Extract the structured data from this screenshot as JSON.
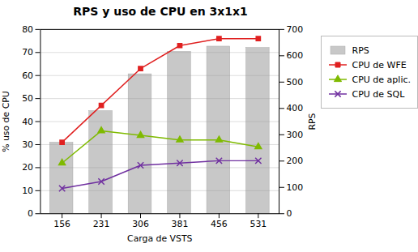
{
  "chart_data": {
    "type": "combo",
    "title": "RPS y uso de CPU en 3x1x1",
    "xlabel": "Carga de VSTS",
    "ylabel": "% uso de CPU",
    "y2label": "RPS",
    "categories": [
      156,
      231,
      306,
      381,
      456,
      531
    ],
    "series": [
      {
        "name": "RPS",
        "type": "bar",
        "axis": "y2",
        "color": "#C8C8C8",
        "values": [
          270,
          390,
          530,
          615,
          635,
          630
        ]
      },
      {
        "name": "CPU de WFE",
        "type": "line",
        "color": "#E02020",
        "marker": "square",
        "values": [
          31,
          47,
          63,
          73,
          76,
          76
        ]
      },
      {
        "name": "CPU de aplic.",
        "type": "line",
        "color": "#7FBA00",
        "marker": "triangle",
        "values": [
          22,
          36,
          34,
          32,
          32,
          29
        ]
      },
      {
        "name": "CPU de SQL",
        "type": "line",
        "color": "#7030A0",
        "marker": "x",
        "values": [
          11,
          14,
          21,
          22,
          23,
          23
        ]
      }
    ],
    "ylim": [
      0,
      80
    ],
    "yticks": [
      0,
      10,
      20,
      30,
      40,
      50,
      60,
      70,
      80
    ],
    "y2lim": [
      0,
      700
    ],
    "y2ticks": [
      0,
      100,
      200,
      300,
      400,
      500,
      600,
      700
    ],
    "grid": true,
    "legend": "right"
  }
}
